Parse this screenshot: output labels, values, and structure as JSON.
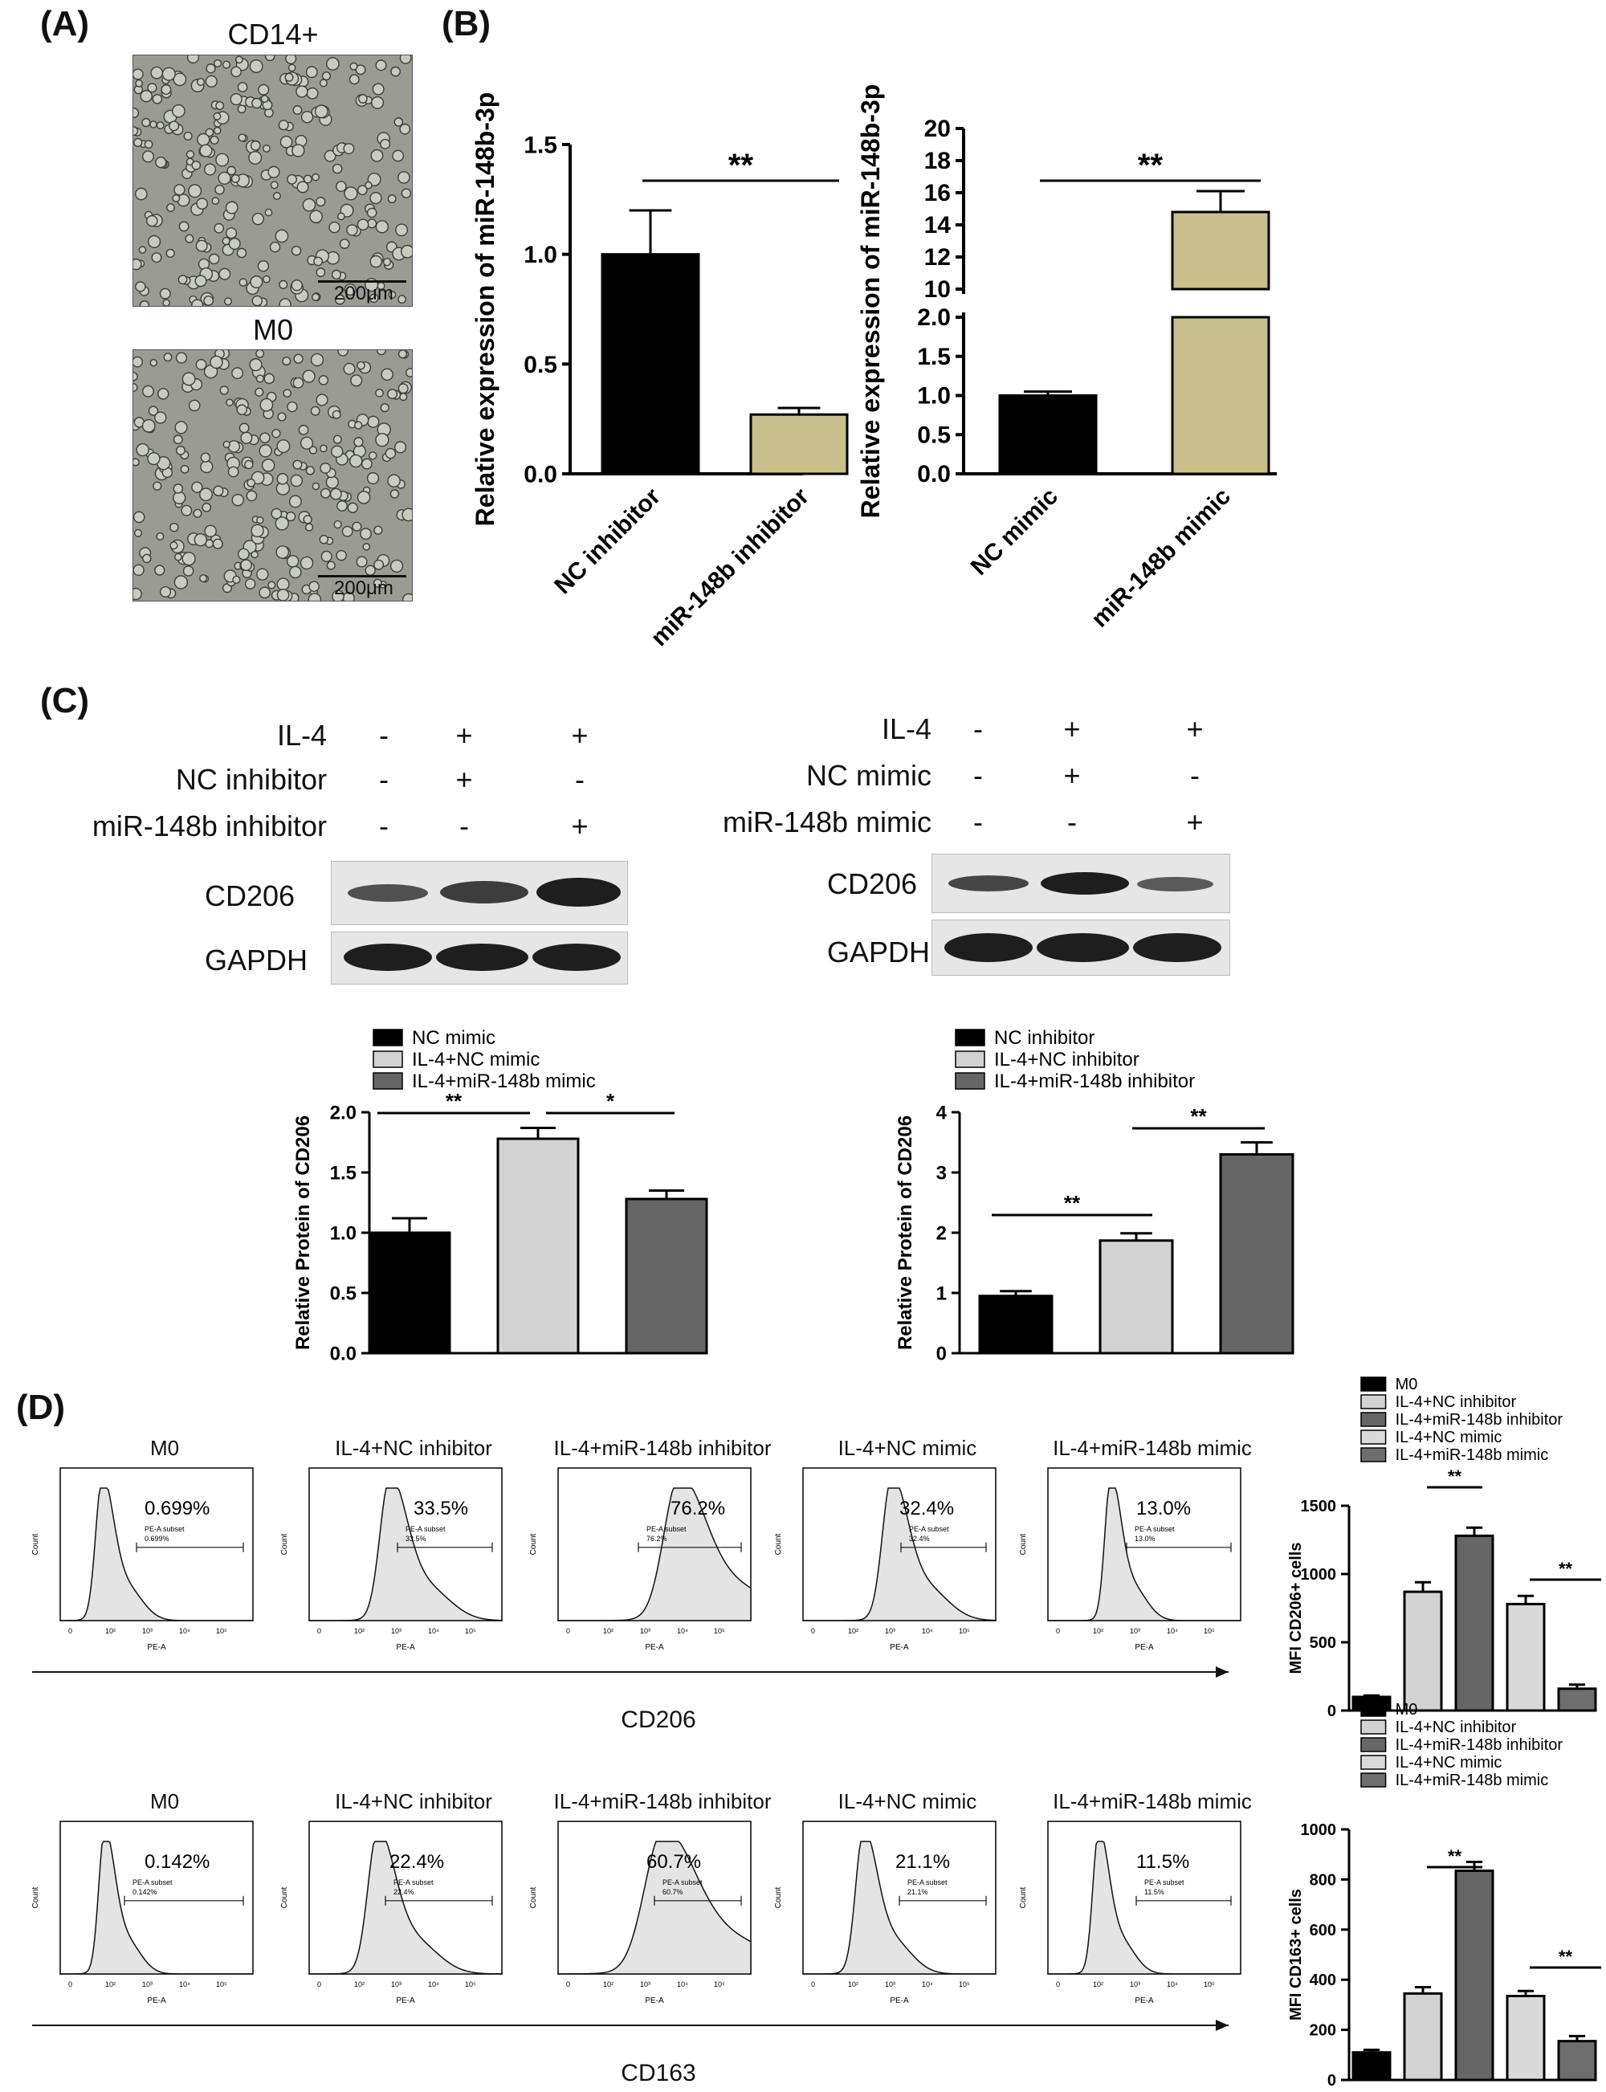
{
  "panels": {
    "A": {
      "label": "(A)",
      "images": [
        {
          "title": "CD14+",
          "scale": "200μm"
        },
        {
          "title": "M0",
          "scale": "200μm"
        }
      ]
    },
    "B": {
      "label": "(B)"
    },
    "C": {
      "label": "(C)",
      "blot_left": {
        "rows": [
          {
            "label": "IL-4",
            "signs": [
              "-",
              "+",
              "+"
            ]
          },
          {
            "label": "NC inhibitor",
            "signs": [
              "-",
              "+",
              "-"
            ]
          },
          {
            "label": "miR-148b inhibitor",
            "signs": [
              "-",
              "-",
              "+"
            ]
          }
        ],
        "proteins": [
          "CD206",
          "GAPDH"
        ]
      },
      "blot_right": {
        "rows": [
          {
            "label": "IL-4",
            "signs": [
              "-",
              "+",
              "+"
            ]
          },
          {
            "label": "NC mimic",
            "signs": [
              "-",
              "+",
              "-"
            ]
          },
          {
            "label": "miR-148b mimic",
            "signs": [
              "-",
              "-",
              "+"
            ]
          }
        ],
        "proteins": [
          "CD206",
          "GAPDH"
        ]
      }
    },
    "D": {
      "label": "(D)",
      "cd206_row": {
        "axis_label": "CD206",
        "histograms": [
          {
            "title": "M0",
            "percent": "0.699%",
            "subset": "PE-A subset",
            "subset_value": "0.699%"
          },
          {
            "title": "IL-4+NC inhibitor",
            "percent": "33.5%",
            "subset": "PE-A subset",
            "subset_value": "33.5%"
          },
          {
            "title": "IL-4+miR-148b inhibitor",
            "percent": "76.2%",
            "subset": "PE-A subset",
            "subset_value": "76.2%"
          },
          {
            "title": "IL-4+NC mimic",
            "percent": "32.4%",
            "subset": "PE-A subset",
            "subset_value": "32.4%"
          },
          {
            "title": "IL-4+miR-148b mimic",
            "percent": "13.0%",
            "subset": "PE-A subset",
            "subset_value": "13.0%"
          }
        ]
      },
      "cd163_row": {
        "axis_label": "CD163",
        "histograms": [
          {
            "title": "M0",
            "percent": "0.142%",
            "subset": "PE-A subset",
            "subset_value": "0.142%"
          },
          {
            "title": "IL-4+NC inhibitor",
            "percent": "22.4%",
            "subset": "PE-A subset",
            "subset_value": "22.4%"
          },
          {
            "title": "IL-4+miR-148b inhibitor",
            "percent": "60.7%",
            "subset": "PE-A subset",
            "subset_value": "60.7%"
          },
          {
            "title": "IL-4+NC mimic",
            "percent": "21.1%",
            "subset": "PE-A subset",
            "subset_value": "21.1%"
          },
          {
            "title": "IL-4+miR-148b mimic",
            "percent": "11.5%",
            "subset": "PE-A subset",
            "subset_value": "11.5%"
          }
        ]
      },
      "hist_axis": {
        "x_label": "PE-A",
        "y_label": "Count",
        "x_ticks": [
          "0",
          "10²",
          "10³",
          "10⁴",
          "10⁵"
        ]
      }
    }
  },
  "chart_data": [
    {
      "id": "B-left",
      "type": "bar",
      "categories": [
        "NC inhibitor",
        "miR-148b inhibitor"
      ],
      "values": [
        1.0,
        0.27
      ],
      "errors": [
        0.2,
        0.03
      ],
      "colors": [
        "#000000",
        "#c9bf8a"
      ],
      "ylabel": "Relative expression of miR-148b-3p",
      "ylim": [
        0,
        1.5
      ],
      "yticks": [
        "0.0",
        "0.5",
        "1.0",
        "1.5"
      ],
      "significance": [
        {
          "from": 0,
          "to": 1,
          "label": "**"
        }
      ]
    },
    {
      "id": "B-right",
      "type": "bar",
      "categories": [
        "NC mimic",
        "miR-148b mimic"
      ],
      "values": [
        1.0,
        14.8
      ],
      "errors": [
        0.05,
        1.3
      ],
      "colors": [
        "#000000",
        "#c9bf8a"
      ],
      "ylabel": "Relative expression of miR-148b-3p",
      "ylim": [
        0,
        20
      ],
      "axis_break": [
        2,
        10
      ],
      "yticks": [
        "0.0",
        "0.5",
        "1.0",
        "1.5",
        "2.0",
        "10",
        "12",
        "14",
        "16",
        "18",
        "20"
      ],
      "significance": [
        {
          "from": 0,
          "to": 1,
          "label": "**"
        }
      ]
    },
    {
      "id": "C-left",
      "type": "bar",
      "categories": [
        "NC mimic",
        "IL-4+NC mimic",
        "IL-4+miR-148b mimic"
      ],
      "values": [
        1.0,
        1.78,
        1.28
      ],
      "errors": [
        0.12,
        0.09,
        0.07
      ],
      "colors": [
        "#000000",
        "#d2d2d2",
        "#666666"
      ],
      "legend": [
        "NC mimic",
        "IL-4+NC mimic",
        "IL-4+miR-148b mimic"
      ],
      "ylabel": "Relative  Protein of CD206",
      "ylim": [
        0,
        2.0
      ],
      "yticks": [
        "0.0",
        "0.5",
        "1.0",
        "1.5",
        "2.0"
      ],
      "significance": [
        {
          "from": 0,
          "to": 1,
          "label": "**"
        },
        {
          "from": 1,
          "to": 2,
          "label": "*"
        }
      ]
    },
    {
      "id": "C-right",
      "type": "bar",
      "categories": [
        "NC inhibitor",
        "IL-4+NC inhibitor",
        "IL-4+miR-148b inhibitor"
      ],
      "values": [
        0.95,
        1.87,
        3.3
      ],
      "errors": [
        0.08,
        0.12,
        0.2
      ],
      "colors": [
        "#000000",
        "#d2d2d2",
        "#666666"
      ],
      "legend": [
        "NC inhibitor",
        "IL-4+NC inhibitor",
        "IL-4+miR-148b inhibitor"
      ],
      "ylabel": "Relative  Protein of CD206",
      "ylim": [
        0,
        4
      ],
      "yticks": [
        "0",
        "1",
        "2",
        "3",
        "4"
      ],
      "significance": [
        {
          "from": 0,
          "to": 1,
          "label": "**"
        },
        {
          "from": 1,
          "to": 2,
          "label": "**"
        }
      ]
    },
    {
      "id": "D-top",
      "type": "bar",
      "categories": [
        "M0",
        "IL-4+NC inhibitor",
        "IL-4+miR-148b inhibitor",
        "IL-4+NC mimic",
        "IL-4+miR-148b mimic"
      ],
      "values": [
        100,
        870,
        1280,
        780,
        160
      ],
      "errors": [
        10,
        70,
        60,
        60,
        30
      ],
      "colors": [
        "#000000",
        "#d2d2d2",
        "#666666",
        "#d9d9d9",
        "#6e6e6e"
      ],
      "legend": [
        "M0",
        "IL-4+NC inhibitor",
        "IL-4+miR-148b inhibitor",
        "IL-4+NC mimic",
        "IL-4+miR-148b mimic"
      ],
      "ylabel": "MFI CD206+ cells",
      "ylim": [
        0,
        1500
      ],
      "yticks": [
        "0",
        "500",
        "1000",
        "1500"
      ],
      "significance": [
        {
          "from": 1,
          "to": 2,
          "label": "**"
        },
        {
          "from": 3,
          "to": 4,
          "label": "**"
        }
      ]
    },
    {
      "id": "D-bottom",
      "type": "bar",
      "categories": [
        "M0",
        "IL-4+NC inhibitor",
        "IL-4+miR-148b inhibitor",
        "IL-4+NC mimic",
        "IL-4+miR-148b mimic"
      ],
      "values": [
        110,
        345,
        835,
        335,
        155
      ],
      "errors": [
        10,
        25,
        35,
        20,
        20
      ],
      "colors": [
        "#000000",
        "#d2d2d2",
        "#666666",
        "#d9d9d9",
        "#6e6e6e"
      ],
      "legend": [
        "M0",
        "IL-4+NC inhibitor",
        "IL-4+miR-148b inhibitor",
        "IL-4+NC mimic",
        "IL-4+miR-148b mimic"
      ],
      "ylabel": "MFI CD163+ cells",
      "ylim": [
        0,
        1000
      ],
      "yticks": [
        "0",
        "200",
        "400",
        "600",
        "800",
        "1000"
      ],
      "significance": [
        {
          "from": 1,
          "to": 2,
          "label": "**"
        },
        {
          "from": 3,
          "to": 4,
          "label": "**"
        }
      ]
    }
  ]
}
